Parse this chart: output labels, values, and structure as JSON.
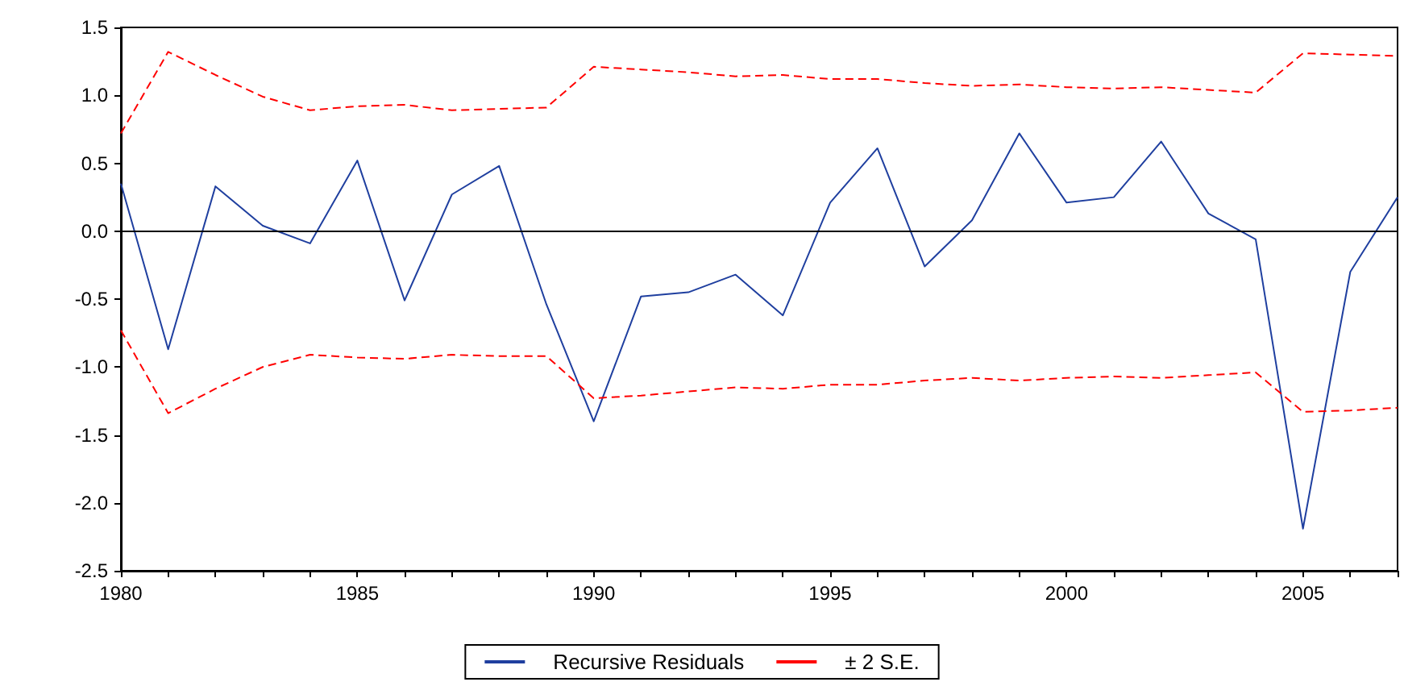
{
  "chart_data": {
    "type": "line",
    "x": [
      1980,
      1981,
      1982,
      1983,
      1984,
      1985,
      1986,
      1987,
      1988,
      1989,
      1990,
      1991,
      1992,
      1993,
      1994,
      1995,
      1996,
      1997,
      1998,
      1999,
      2000,
      2001,
      2002,
      2003,
      2004,
      2005,
      2006,
      2007
    ],
    "series": [
      {
        "name": "Recursive Residuals",
        "color": "#1f3f9f",
        "line_style": "solid",
        "values": [
          0.35,
          -0.87,
          0.33,
          0.04,
          -0.09,
          0.52,
          -0.51,
          0.27,
          0.48,
          -0.54,
          -1.4,
          -0.48,
          -0.45,
          -0.32,
          -0.62,
          0.21,
          0.61,
          -0.26,
          0.08,
          0.72,
          0.21,
          0.25,
          0.66,
          0.13,
          -0.06,
          -2.19,
          -0.3,
          0.25
        ]
      },
      {
        "name": "± 2 S.E.",
        "color": "#ff0000",
        "line_style": "dashed",
        "values": [
          0.72,
          1.32,
          1.15,
          0.99,
          0.89,
          0.92,
          0.93,
          0.89,
          0.9,
          0.91,
          1.21,
          1.19,
          1.17,
          1.14,
          1.15,
          1.12,
          1.12,
          1.09,
          1.07,
          1.08,
          1.06,
          1.05,
          1.06,
          1.04,
          1.02,
          1.31,
          1.3,
          1.29
        ]
      },
      {
        "color": "#ff0000",
        "line_style": "dashed",
        "values": [
          -0.73,
          -1.34,
          -1.16,
          -1.0,
          -0.91,
          -0.93,
          -0.94,
          -0.91,
          -0.92,
          -0.92,
          -1.23,
          -1.21,
          -1.18,
          -1.15,
          -1.16,
          -1.13,
          -1.13,
          -1.1,
          -1.08,
          -1.1,
          -1.08,
          -1.07,
          -1.08,
          -1.06,
          -1.04,
          -1.33,
          -1.32,
          -1.3
        ]
      }
    ],
    "xlim": [
      1980,
      2007
    ],
    "xticks": [
      1980,
      {
        "value": 1981,
        "label": null
      },
      {
        "value": 1982,
        "label": null
      },
      {
        "value": 1983,
        "label": null
      },
      {
        "value": 1984,
        "label": null
      },
      1985,
      {
        "value": 1986,
        "label": null
      },
      {
        "value": 1987,
        "label": null
      },
      {
        "value": 1988,
        "label": null
      },
      {
        "value": 1989,
        "label": null
      },
      1990,
      {
        "value": 1991,
        "label": null
      },
      {
        "value": 1992,
        "label": null
      },
      {
        "value": 1993,
        "label": null
      },
      {
        "value": 1994,
        "label": null
      },
      1995,
      {
        "value": 1996,
        "label": null
      },
      {
        "value": 1997,
        "label": null
      },
      {
        "value": 1998,
        "label": null
      },
      {
        "value": 1999,
        "label": null
      },
      2000,
      {
        "value": 2001,
        "label": null
      },
      {
        "value": 2002,
        "label": null
      },
      {
        "value": 2003,
        "label": null
      },
      {
        "value": 2004,
        "label": null
      },
      2005,
      {
        "value": 2006,
        "label": null
      },
      {
        "value": 2007,
        "label": null
      }
    ],
    "ylim": [
      -2.5,
      1.5
    ],
    "yticks": [
      {
        "value": -2.5,
        "label": "-2.5"
      },
      {
        "value": -2.0,
        "label": "-2.0"
      },
      {
        "value": -1.5,
        "label": "-1.5"
      },
      {
        "value": -1.0,
        "label": "-1.0"
      },
      {
        "value": -0.5,
        "label": "-0.5"
      },
      {
        "value": 0,
        "label": "0.0"
      },
      {
        "value": 0.5,
        "label": "0.5"
      },
      {
        "value": 1.0,
        "label": "1.0"
      },
      {
        "value": 1.5,
        "label": "1.5"
      }
    ],
    "ref_lines": [
      {
        "axis": "y",
        "value": 0,
        "color": "#000000",
        "line_style": "solid"
      }
    ],
    "grid": false,
    "legend": "bottom",
    "marker": "none"
  }
}
